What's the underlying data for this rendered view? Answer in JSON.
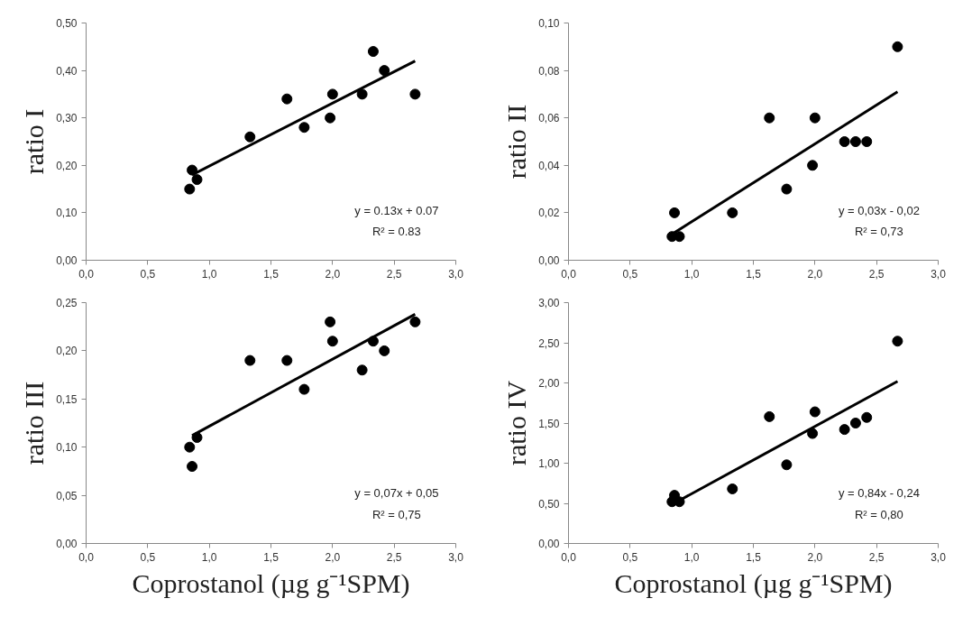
{
  "chart_data": [
    {
      "type": "scatter",
      "ylabel": "ratio I",
      "grid": false,
      "xlim": [
        0,
        3
      ],
      "xticks": [
        {
          "value": 0,
          "label": "0,0"
        },
        {
          "value": 0.5,
          "label": "0,5"
        },
        {
          "value": 1,
          "label": "1,0"
        },
        {
          "value": 1.5,
          "label": "1,5"
        },
        {
          "value": 2,
          "label": "2,0"
        },
        {
          "value": 2.5,
          "label": "2,5"
        },
        {
          "value": 3,
          "label": "3,0"
        }
      ],
      "ylim": [
        0,
        0.5
      ],
      "yticks": [
        {
          "value": 0,
          "label": "0,00"
        },
        {
          "value": 0.1,
          "label": "0,10"
        },
        {
          "value": 0.2,
          "label": "0,20"
        },
        {
          "value": 0.3,
          "label": "0,30"
        },
        {
          "value": 0.4,
          "label": "0,40"
        },
        {
          "value": 0.5,
          "label": "0,50"
        }
      ],
      "series": [
        {
          "marker": "circle",
          "color": "#000000",
          "x": [
            0.84,
            0.86,
            0.9,
            1.33,
            1.63,
            1.77,
            1.98,
            2.0,
            2.24,
            2.33,
            2.42,
            2.67
          ],
          "values": [
            0.15,
            0.19,
            0.17,
            0.26,
            0.34,
            0.28,
            0.3,
            0.35,
            0.35,
            0.44,
            0.4,
            0.35
          ]
        },
        {
          "type": "line",
          "marker": "none",
          "color": "#000000",
          "x": [
            0.86,
            2.67
          ],
          "values": [
            0.18,
            0.42
          ]
        }
      ],
      "annotations": [
        "y = 0.13x + 0.07",
        "R² = 0.83"
      ]
    },
    {
      "type": "scatter",
      "ylabel": "ratio II",
      "grid": false,
      "xlim": [
        0,
        3
      ],
      "xticks": [
        {
          "value": 0,
          "label": "0,0"
        },
        {
          "value": 0.5,
          "label": "0,5"
        },
        {
          "value": 1,
          "label": "1,0"
        },
        {
          "value": 1.5,
          "label": "1,5"
        },
        {
          "value": 2,
          "label": "2,0"
        },
        {
          "value": 2.5,
          "label": "2,5"
        },
        {
          "value": 3,
          "label": "3,0"
        }
      ],
      "ylim": [
        0,
        0.1
      ],
      "yticks": [
        {
          "value": 0,
          "label": "0,00"
        },
        {
          "value": 0.02,
          "label": "0,02"
        },
        {
          "value": 0.04,
          "label": "0,04"
        },
        {
          "value": 0.06,
          "label": "0,06"
        },
        {
          "value": 0.08,
          "label": "0,08"
        },
        {
          "value": 0.1,
          "label": "0,10"
        }
      ],
      "series": [
        {
          "marker": "circle",
          "color": "#000000",
          "x": [
            0.84,
            0.86,
            0.9,
            1.33,
            1.63,
            1.77,
            1.98,
            2.0,
            2.24,
            2.33,
            2.42,
            2.67
          ],
          "values": [
            0.01,
            0.02,
            0.01,
            0.02,
            0.06,
            0.03,
            0.04,
            0.06,
            0.05,
            0.05,
            0.05,
            0.09
          ]
        },
        {
          "type": "line",
          "marker": "none",
          "color": "#000000",
          "x": [
            0.84,
            2.67
          ],
          "values": [
            0.011,
            0.071
          ]
        }
      ],
      "annotations": [
        "y = 0,03x - 0,02",
        "R² = 0,73"
      ]
    },
    {
      "type": "scatter",
      "ylabel": "ratio III",
      "xlabel": "Coprostanol (µg g⁻¹SPM)",
      "grid": false,
      "xlim": [
        0,
        3
      ],
      "xticks": [
        {
          "value": 0,
          "label": "0,0"
        },
        {
          "value": 0.5,
          "label": "0,5"
        },
        {
          "value": 1,
          "label": "1,0"
        },
        {
          "value": 1.5,
          "label": "1,5"
        },
        {
          "value": 2,
          "label": "2,0"
        },
        {
          "value": 2.5,
          "label": "2,5"
        },
        {
          "value": 3,
          "label": "3,0"
        }
      ],
      "ylim": [
        0,
        0.25
      ],
      "yticks": [
        {
          "value": 0,
          "label": "0,00"
        },
        {
          "value": 0.05,
          "label": "0,05"
        },
        {
          "value": 0.1,
          "label": "0,10"
        },
        {
          "value": 0.15,
          "label": "0,15"
        },
        {
          "value": 0.2,
          "label": "0,20"
        },
        {
          "value": 0.25,
          "label": "0,25"
        }
      ],
      "series": [
        {
          "marker": "circle",
          "color": "#000000",
          "x": [
            0.84,
            0.86,
            0.9,
            1.33,
            1.63,
            1.77,
            1.98,
            2.0,
            2.24,
            2.33,
            2.42,
            2.67
          ],
          "values": [
            0.1,
            0.08,
            0.11,
            0.19,
            0.19,
            0.16,
            0.23,
            0.21,
            0.18,
            0.21,
            0.2,
            0.23
          ]
        },
        {
          "type": "line",
          "marker": "none",
          "color": "#000000",
          "x": [
            0.86,
            2.67
          ],
          "values": [
            0.112,
            0.238
          ]
        }
      ],
      "annotations": [
        "y = 0,07x + 0,05",
        "R² = 0,75"
      ]
    },
    {
      "type": "scatter",
      "ylabel": "ratio IV",
      "xlabel": "Coprostanol (µg g⁻¹SPM)",
      "grid": false,
      "xlim": [
        0,
        3
      ],
      "xticks": [
        {
          "value": 0,
          "label": "0,0"
        },
        {
          "value": 0.5,
          "label": "0,5"
        },
        {
          "value": 1,
          "label": "1,0"
        },
        {
          "value": 1.5,
          "label": "1,5"
        },
        {
          "value": 2,
          "label": "2,0"
        },
        {
          "value": 2.5,
          "label": "2,5"
        },
        {
          "value": 3,
          "label": "3,0"
        }
      ],
      "ylim": [
        0,
        3
      ],
      "yticks": [
        {
          "value": 0,
          "label": "0,00"
        },
        {
          "value": 0.5,
          "label": "0,50"
        },
        {
          "value": 1,
          "label": "1,00"
        },
        {
          "value": 1.5,
          "label": "1,50"
        },
        {
          "value": 2,
          "label": "2,00"
        },
        {
          "value": 2.5,
          "label": "2,50"
        },
        {
          "value": 3,
          "label": "3,00"
        }
      ],
      "series": [
        {
          "marker": "circle",
          "color": "#000000",
          "x": [
            0.84,
            0.86,
            0.9,
            1.33,
            1.63,
            1.77,
            1.98,
            2.0,
            2.24,
            2.33,
            2.42,
            2.67
          ],
          "values": [
            0.52,
            0.6,
            0.52,
            0.68,
            1.58,
            0.98,
            1.37,
            1.64,
            1.42,
            1.5,
            1.57,
            2.52
          ]
        },
        {
          "type": "line",
          "marker": "none",
          "color": "#000000",
          "x": [
            0.88,
            2.67
          ],
          "values": [
            0.52,
            2.02
          ]
        }
      ],
      "annotations": [
        "y = 0,84x - 0,24",
        "R² = 0,80"
      ]
    }
  ]
}
